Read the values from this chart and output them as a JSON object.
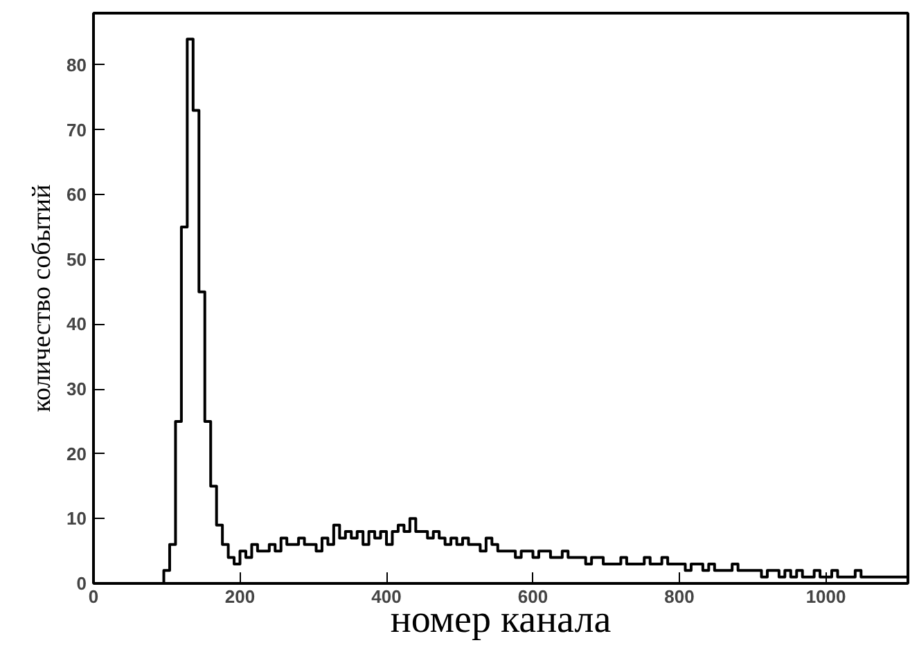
{
  "chart_data": {
    "type": "histogram",
    "xlabel": "номер канала",
    "ylabel": "количество событий",
    "bins": [
      0,
      8,
      16,
      24,
      32,
      40,
      48,
      56,
      64,
      72,
      80,
      88,
      96,
      104,
      112,
      120,
      128,
      136,
      144,
      152,
      160,
      168,
      176,
      184,
      192,
      200,
      208,
      216,
      224,
      232,
      240,
      248,
      256,
      264,
      272,
      280,
      288,
      296,
      304,
      312,
      320,
      328,
      336,
      344,
      352,
      360,
      368,
      376,
      384,
      392,
      400,
      408,
      416,
      424,
      432,
      440,
      448,
      456,
      464,
      472,
      480,
      488,
      496,
      504,
      512,
      520,
      528,
      536,
      544,
      552,
      560,
      568,
      576,
      584,
      592,
      600,
      608,
      616,
      624,
      632,
      640,
      648,
      656,
      664,
      672,
      680,
      688,
      696,
      704,
      712,
      720,
      728,
      736,
      744,
      752,
      760,
      768,
      776,
      784,
      792,
      800,
      808,
      816,
      824,
      832,
      840,
      848,
      856,
      864,
      872,
      880,
      888,
      896,
      904,
      912,
      920,
      928,
      936,
      944,
      952,
      960,
      968,
      976,
      984,
      992,
      1000,
      1008,
      1016,
      1024,
      1032,
      1040,
      1048,
      1056,
      1064,
      1072,
      1080,
      1088,
      1096,
      1104,
      1112
    ],
    "values": [
      0,
      0,
      0,
      0,
      0,
      0,
      0,
      0,
      0,
      0,
      0,
      0,
      2,
      6,
      25,
      55,
      84,
      73,
      45,
      25,
      15,
      9,
      6,
      4,
      3,
      5,
      4,
      6,
      5,
      5,
      6,
      5,
      7,
      6,
      6,
      7,
      6,
      6,
      5,
      7,
      6,
      9,
      7,
      8,
      7,
      8,
      6,
      8,
      7,
      8,
      6,
      8,
      9,
      8,
      10,
      8,
      8,
      7,
      8,
      7,
      6,
      7,
      6,
      7,
      6,
      6,
      5,
      7,
      6,
      5,
      5,
      5,
      4,
      5,
      5,
      4,
      5,
      5,
      4,
      4,
      5,
      4,
      4,
      4,
      3,
      4,
      4,
      3,
      3,
      3,
      4,
      3,
      3,
      3,
      4,
      3,
      3,
      4,
      3,
      3,
      3,
      2,
      3,
      3,
      2,
      3,
      2,
      2,
      2,
      3,
      2,
      2,
      2,
      2,
      1,
      2,
      2,
      1,
      2,
      1,
      2,
      1,
      1,
      2,
      1,
      1,
      2,
      1,
      1,
      1,
      2,
      1,
      1,
      1,
      1,
      1,
      1,
      1,
      1
    ],
    "color": "#000000",
    "xlim": [
      0,
      1112
    ],
    "ylim": [
      0,
      88
    ],
    "xticks": [
      0,
      200,
      400,
      600,
      800,
      1000
    ],
    "yticks": [
      0,
      10,
      20,
      30,
      40,
      50,
      60,
      70,
      80
    ],
    "grid": false
  }
}
